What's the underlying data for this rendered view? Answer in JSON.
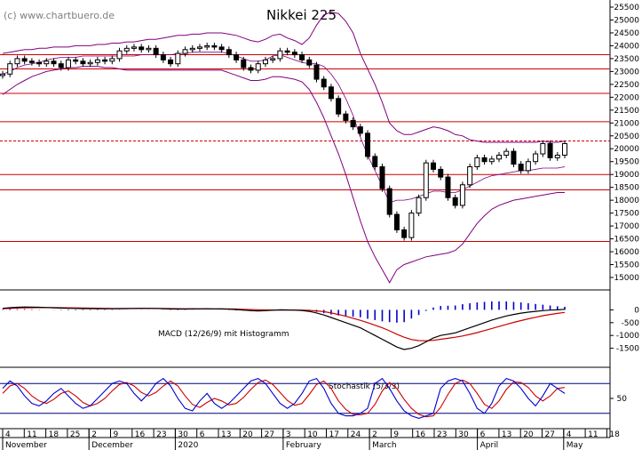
{
  "chart_data": {
    "type": "candlestick",
    "title": "Nikkei 225",
    "watermark": "(c) www.chartbuero.de",
    "colors": {
      "candle": "#000000",
      "bollinger": "#800080",
      "support_resistance": "#cc0000",
      "macd_line": "#000000",
      "signal_line": "#cc0000",
      "histogram": "#0000cc",
      "stoch_k": "#0000cc",
      "stoch_d": "#cc0000",
      "stoch_bounds": "#000080"
    },
    "price_axis": {
      "ylim": [
        15000,
        25500
      ],
      "ticks": [
        15000,
        15500,
        16000,
        16500,
        17000,
        17500,
        18000,
        18500,
        19000,
        19500,
        20000,
        20500,
        21000,
        21500,
        22000,
        22500,
        23000,
        23500,
        24000,
        24500,
        25000,
        25500
      ]
    },
    "horizontal_levels": [
      {
        "value": 23650,
        "style": "solid"
      },
      {
        "value": 23100,
        "style": "solid"
      },
      {
        "value": 22150,
        "style": "solid"
      },
      {
        "value": 21050,
        "style": "solid"
      },
      {
        "value": 20300,
        "style": "dashed"
      },
      {
        "value": 19000,
        "style": "solid"
      },
      {
        "value": 18400,
        "style": "solid"
      },
      {
        "value": 16400,
        "style": "solid"
      }
    ],
    "x_axis": {
      "day_ticks": [
        "4",
        "11",
        "18",
        "25",
        "2",
        "9",
        "16",
        "23",
        "30",
        "6",
        "13",
        "20",
        "27",
        "3",
        "10",
        "17",
        "24",
        "2",
        "9",
        "16",
        "23",
        "30",
        "6",
        "13",
        "20",
        "27",
        "4",
        "11",
        "18"
      ],
      "month_labels": [
        "November",
        "December",
        "2020",
        "February",
        "March",
        "April",
        "May"
      ],
      "month_label_tick_index": [
        0,
        4,
        8,
        13,
        17,
        22,
        26
      ]
    },
    "price_series": {
      "close": [
        22900,
        23300,
        23500,
        23400,
        23350,
        23300,
        23400,
        23300,
        23150,
        23450,
        23400,
        23300,
        23350,
        23450,
        23400,
        23500,
        23800,
        23900,
        23950,
        23850,
        23900,
        23650,
        23450,
        23300,
        23700,
        23850,
        23900,
        23950,
        24000,
        23950,
        23850,
        23650,
        23450,
        23150,
        23050,
        23300,
        23450,
        23500,
        23800,
        23750,
        23650,
        23450,
        23250,
        22700,
        22400,
        21950,
        21350,
        21100,
        20850,
        20600,
        19700,
        19300,
        18450,
        17450,
        16850,
        16550,
        17500,
        18100,
        19450,
        19200,
        18900,
        18100,
        17800,
        18600,
        19300,
        19650,
        19500,
        19600,
        19750,
        19900,
        19400,
        19150,
        19500,
        19800,
        20200,
        19650,
        19750,
        20200
      ],
      "bollinger_upper": [
        23700,
        23750,
        23800,
        23850,
        23850,
        23900,
        23900,
        23950,
        23950,
        23950,
        24000,
        24000,
        24000,
        24050,
        24050,
        24100,
        24100,
        24150,
        24150,
        24200,
        24250,
        24250,
        24300,
        24350,
        24400,
        24400,
        24450,
        24450,
        24500,
        24500,
        24500,
        24450,
        24400,
        24300,
        24200,
        24150,
        24250,
        24400,
        24450,
        24300,
        24200,
        24050,
        24300,
        24800,
        25200,
        25300,
        25250,
        24950,
        24500,
        23700,
        23100,
        22500,
        21800,
        21000,
        20700,
        20550,
        20550,
        20650,
        20750,
        20850,
        20800,
        20700,
        20550,
        20500,
        20350,
        20300,
        20250,
        20250,
        20250,
        20250,
        20250,
        20250,
        20250,
        20250,
        20300,
        20250,
        20250,
        20300
      ],
      "bollinger_lower": [
        22100,
        22300,
        22500,
        22650,
        22800,
        22900,
        23000,
        23050,
        23100,
        23150,
        23150,
        23200,
        23200,
        23200,
        23150,
        23150,
        23100,
        23050,
        23050,
        23050,
        23050,
        23050,
        23050,
        23050,
        23050,
        23050,
        23050,
        23050,
        23050,
        23050,
        23050,
        22950,
        22850,
        22750,
        22650,
        22650,
        22700,
        22800,
        22800,
        22750,
        22700,
        22600,
        22300,
        21800,
        21200,
        20500,
        19800,
        19000,
        18100,
        17200,
        16400,
        15800,
        15300,
        14800,
        15300,
        15500,
        15600,
        15700,
        15800,
        15850,
        15900,
        15950,
        16050,
        16300,
        16700,
        17100,
        17400,
        17650,
        17800,
        17900,
        18000,
        18050,
        18100,
        18150,
        18200,
        18250,
        18300,
        18300
      ],
      "bollinger_mid": [
        22900,
        23000,
        23150,
        23250,
        23300,
        23350,
        23450,
        23500,
        23550,
        23550,
        23550,
        23600,
        23600,
        23600,
        23600,
        23600,
        23600,
        23600,
        23600,
        23650,
        23650,
        23650,
        23650,
        23650,
        23700,
        23700,
        23750,
        23750,
        23750,
        23750,
        23750,
        23700,
        23600,
        23500,
        23400,
        23400,
        23450,
        23600,
        23650,
        23550,
        23450,
        23350,
        23300,
        23300,
        23200,
        22900,
        22500,
        21950,
        21300,
        20450,
        19750,
        19150,
        18550,
        17900,
        18000,
        18000,
        18050,
        18150,
        18250,
        18350,
        18350,
        18300,
        18300,
        18400,
        18550,
        18700,
        18850,
        18950,
        19000,
        19050,
        19100,
        19150,
        19150,
        19200,
        19250,
        19250,
        19250,
        19300
      ]
    },
    "macd": {
      "label": "MACD (12/26/9) mit Histogramm",
      "ylim": [
        -2000,
        500
      ],
      "ticks": [
        -1500,
        -1000,
        -500,
        0
      ],
      "macd_line": [
        60,
        85,
        100,
        110,
        105,
        100,
        90,
        80,
        70,
        60,
        55,
        50,
        48,
        45,
        42,
        40,
        45,
        50,
        55,
        58,
        60,
        55,
        45,
        35,
        30,
        32,
        35,
        38,
        40,
        38,
        35,
        25,
        10,
        -10,
        -30,
        -40,
        -30,
        -15,
        0,
        -5,
        -10,
        -25,
        -60,
        -120,
        -200,
        -300,
        -400,
        -500,
        -600,
        -700,
        -850,
        -1000,
        -1150,
        -1300,
        -1450,
        -1550,
        -1500,
        -1400,
        -1250,
        -1100,
        -1000,
        -950,
        -900,
        -800,
        -700,
        -600,
        -500,
        -400,
        -320,
        -240,
        -180,
        -130,
        -90,
        -60,
        -30,
        -10,
        0,
        20
      ],
      "signal_line": [
        40,
        55,
        70,
        80,
        85,
        88,
        90,
        88,
        85,
        80,
        75,
        70,
        66,
        62,
        58,
        55,
        52,
        52,
        52,
        53,
        54,
        54,
        52,
        48,
        45,
        42,
        40,
        40,
        40,
        39,
        38,
        35,
        30,
        22,
        12,
        2,
        -5,
        -8,
        -6,
        -6,
        -7,
        -10,
        -20,
        -40,
        -70,
        -120,
        -180,
        -250,
        -330,
        -410,
        -500,
        -600,
        -700,
        -820,
        -950,
        -1070,
        -1160,
        -1200,
        -1210,
        -1190,
        -1150,
        -1110,
        -1070,
        -1020,
        -960,
        -890,
        -810,
        -730,
        -650,
        -570,
        -490,
        -420,
        -350,
        -290,
        -230,
        -180,
        -140,
        -100
      ]
    },
    "stochastic": {
      "label": "Stochastik (5/3/3)",
      "ylim": [
        0,
        100
      ],
      "bounds": [
        80,
        20
      ],
      "ticks": [
        50
      ],
      "k_line": [
        70,
        85,
        75,
        55,
        40,
        35,
        45,
        60,
        70,
        55,
        40,
        30,
        35,
        50,
        65,
        80,
        85,
        80,
        60,
        45,
        60,
        80,
        90,
        75,
        50,
        30,
        25,
        45,
        60,
        40,
        30,
        40,
        55,
        70,
        85,
        90,
        80,
        60,
        40,
        30,
        40,
        60,
        85,
        90,
        70,
        40,
        20,
        15,
        15,
        20,
        30,
        80,
        90,
        70,
        45,
        25,
        15,
        10,
        15,
        20,
        70,
        85,
        90,
        85,
        60,
        30,
        20,
        40,
        75,
        90,
        85,
        70,
        50,
        35,
        55,
        80,
        70,
        60
      ],
      "d_line": [
        60,
        75,
        80,
        70,
        55,
        45,
        40,
        48,
        60,
        65,
        55,
        42,
        35,
        40,
        50,
        65,
        78,
        82,
        75,
        62,
        55,
        62,
        75,
        85,
        75,
        55,
        38,
        32,
        42,
        50,
        45,
        37,
        40,
        52,
        68,
        82,
        87,
        78,
        62,
        46,
        36,
        40,
        58,
        78,
        85,
        70,
        45,
        28,
        18,
        17,
        20,
        38,
        65,
        82,
        70,
        48,
        30,
        18,
        13,
        15,
        32,
        58,
        80,
        87,
        80,
        60,
        38,
        30,
        45,
        68,
        83,
        82,
        72,
        55,
        45,
        55,
        70,
        72
      ]
    }
  }
}
